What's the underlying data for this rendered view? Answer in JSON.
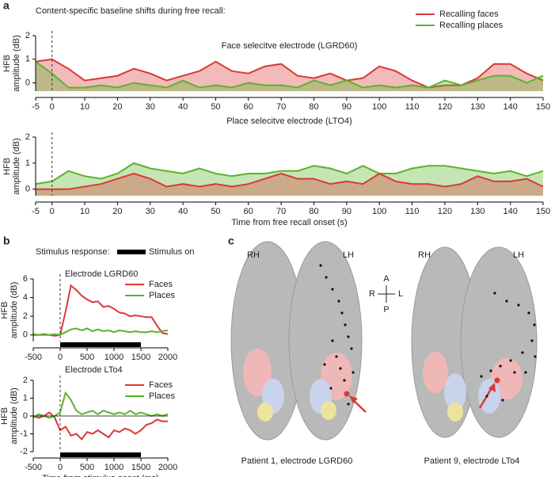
{
  "panel_labels": [
    "a",
    "b",
    "c"
  ],
  "header": "Content-specific baseline shifts during free recall:",
  "stimulus_legend": {
    "title": "Stimulus response:",
    "label": "Stimulus on"
  },
  "brain_panel": {
    "left": {
      "rh": "RH",
      "lh": "LH",
      "caption": "Patient 1, electrode LGRD60"
    },
    "right": {
      "rh": "RH",
      "lh": "LH",
      "caption": "Patient 9, electrode LTo4"
    },
    "compass": {
      "a": "A",
      "p": "P",
      "r": "R",
      "l": "L"
    }
  },
  "chart_data": [
    {
      "type": "area",
      "title": "Face selecitve electrode (LGRD60)",
      "ylabel": [
        "HFB",
        "amplitude (dB)"
      ],
      "legend": "upper right",
      "vline": 0,
      "x": [
        -5,
        0,
        5,
        10,
        15,
        20,
        25,
        30,
        35,
        40,
        45,
        50,
        55,
        60,
        65,
        70,
        75,
        80,
        85,
        90,
        95,
        100,
        105,
        110,
        115,
        120,
        125,
        130,
        135,
        140,
        145,
        150
      ],
      "xlim": [
        -5,
        150
      ],
      "xticks": [
        -5,
        0,
        10,
        20,
        30,
        40,
        50,
        60,
        70,
        80,
        90,
        100,
        110,
        120,
        130,
        140,
        150
      ],
      "ylim": [
        -0.35,
        2
      ],
      "yticks": [
        0,
        1,
        2
      ],
      "series": [
        {
          "name": "Recalling faces",
          "color": "#d93a35",
          "values": [
            0.9,
            1.0,
            0.6,
            0.1,
            0.2,
            0.3,
            0.6,
            0.4,
            0.1,
            0.3,
            0.5,
            0.9,
            0.5,
            0.4,
            0.7,
            0.8,
            0.3,
            0.2,
            0.4,
            0.1,
            0.2,
            0.7,
            0.5,
            0.1,
            -0.2,
            -0.1,
            -0.1,
            0.2,
            0.8,
            0.8,
            0.4,
            0.1
          ]
        },
        {
          "name": "Recalling places",
          "color": "#5ab52a",
          "values": [
            0.9,
            0.4,
            -0.2,
            -0.2,
            -0.1,
            -0.2,
            0.0,
            -0.1,
            -0.2,
            0.1,
            -0.2,
            -0.1,
            -0.2,
            0.0,
            -0.1,
            -0.1,
            -0.2,
            0.1,
            -0.1,
            0.1,
            -0.2,
            -0.1,
            -0.2,
            -0.1,
            -0.2,
            0.1,
            -0.1,
            0.1,
            0.3,
            0.3,
            0.0,
            0.3
          ]
        }
      ]
    },
    {
      "type": "area",
      "title": "Place selecitve electrode (LTO4)",
      "ylabel": [
        "HFB",
        "amplitude (dB)"
      ],
      "xlabel": "Time from free recall onset (s)",
      "vline": 0,
      "x": [
        -5,
        0,
        5,
        10,
        15,
        20,
        25,
        30,
        35,
        40,
        45,
        50,
        55,
        60,
        65,
        70,
        75,
        80,
        85,
        90,
        95,
        100,
        105,
        110,
        115,
        120,
        125,
        130,
        135,
        140,
        145,
        150
      ],
      "xlim": [
        -5,
        150
      ],
      "xticks": [
        -5,
        0,
        10,
        20,
        30,
        40,
        50,
        60,
        70,
        80,
        90,
        100,
        110,
        120,
        130,
        140,
        150
      ],
      "ylim": [
        -0.25,
        2
      ],
      "yticks": [
        0,
        1,
        2
      ],
      "series": [
        {
          "color": "#5ab52a",
          "values": [
            0.2,
            0.3,
            0.7,
            0.5,
            0.4,
            0.6,
            1.0,
            0.8,
            0.7,
            0.6,
            0.8,
            0.6,
            0.5,
            0.6,
            0.6,
            0.7,
            0.7,
            0.9,
            0.8,
            0.6,
            0.9,
            0.6,
            0.6,
            0.8,
            0.9,
            0.9,
            0.8,
            0.7,
            0.6,
            0.7,
            0.5,
            0.7
          ]
        },
        {
          "color": "#d93a35",
          "values": [
            0.0,
            0.0,
            0.0,
            0.1,
            0.2,
            0.4,
            0.6,
            0.4,
            0.1,
            0.2,
            0.1,
            0.2,
            0.1,
            0.2,
            0.4,
            0.6,
            0.4,
            0.4,
            0.2,
            0.3,
            0.2,
            0.6,
            0.3,
            0.2,
            0.2,
            0.1,
            0.2,
            0.5,
            0.3,
            0.3,
            0.4,
            0.1
          ]
        }
      ]
    },
    {
      "type": "line",
      "title": "Electrode LGRD60",
      "ylabel": [
        "HFB",
        "amplitude (dB)"
      ],
      "legend": "upper right",
      "vline": 0,
      "stimulus_on": [
        0,
        1500
      ],
      "x": [
        -500,
        -400,
        -300,
        -200,
        -100,
        0,
        100,
        200,
        300,
        400,
        500,
        600,
        700,
        800,
        900,
        1000,
        1100,
        1200,
        1300,
        1400,
        1500,
        1600,
        1700,
        1800,
        1900,
        2000
      ],
      "xlim": [
        -500,
        2000
      ],
      "xticks": [
        -500,
        0,
        500,
        1000,
        1500,
        2000
      ],
      "ylim": [
        -0.7,
        6
      ],
      "yticks": [
        0,
        2,
        4,
        6
      ],
      "series": [
        {
          "name": "Faces",
          "color": "#d93a35",
          "values": [
            0,
            0,
            0.1,
            0,
            -0.1,
            0,
            2.5,
            5.3,
            4.8,
            4.2,
            3.8,
            3.5,
            3.6,
            3.0,
            3.1,
            2.8,
            2.4,
            2.3,
            2.0,
            2.1,
            2.0,
            1.9,
            1.9,
            1.0,
            0.2,
            0.1
          ]
        },
        {
          "name": "Places",
          "color": "#5ab52a",
          "values": [
            0.1,
            0,
            0,
            0,
            0.1,
            0,
            0.3,
            0.6,
            0.7,
            0.5,
            0.7,
            0.4,
            0.6,
            0.4,
            0.5,
            0.3,
            0.5,
            0.4,
            0.3,
            0.4,
            0.3,
            0.3,
            0.4,
            0.3,
            0.4,
            0.5
          ]
        }
      ]
    },
    {
      "type": "line",
      "title": "Electrode LTo4",
      "ylabel": [
        "HFB",
        "amplitude (dB)"
      ],
      "xlabel": "Time from stimulus onset (ms)",
      "legend": "upper right",
      "vline": 0,
      "hline": 0,
      "stimulus_on": [
        0,
        1500
      ],
      "x": [
        -500,
        -400,
        -300,
        -200,
        -100,
        0,
        100,
        200,
        300,
        400,
        500,
        600,
        700,
        800,
        900,
        1000,
        1100,
        1200,
        1300,
        1400,
        1500,
        1600,
        1700,
        1800,
        1900,
        2000
      ],
      "xlim": [
        -500,
        2000
      ],
      "xticks": [
        -500,
        0,
        500,
        1000,
        1500,
        2000
      ],
      "ylim": [
        -2,
        2
      ],
      "yticks": [
        -2,
        -1,
        0,
        1,
        2
      ],
      "series": [
        {
          "name": "Faces",
          "color": "#d93a35",
          "values": [
            0,
            -0.1,
            0,
            0.2,
            -0.1,
            -0.8,
            -0.6,
            -1.1,
            -1.0,
            -1.3,
            -0.9,
            -1.0,
            -0.8,
            -1.0,
            -1.2,
            -0.8,
            -0.9,
            -0.7,
            -0.8,
            -1.0,
            -0.8,
            -0.5,
            -0.4,
            -0.2,
            -0.3,
            -0.3
          ]
        },
        {
          "name": "Places",
          "color": "#5ab52a",
          "values": [
            -0.1,
            0.1,
            0,
            -0.1,
            0,
            0.2,
            1.3,
            0.9,
            0.3,
            0.1,
            0.2,
            0.3,
            0.1,
            0.3,
            0.2,
            0.1,
            0.2,
            0.1,
            0.3,
            0.1,
            0.2,
            0.1,
            0.0,
            0.1,
            0.0,
            0.1
          ]
        }
      ]
    }
  ]
}
